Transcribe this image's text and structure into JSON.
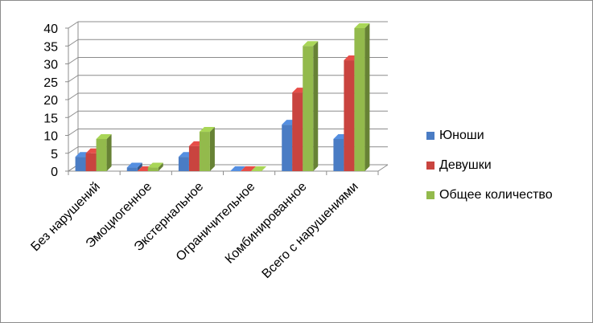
{
  "chart_data": {
    "type": "bar",
    "title": "",
    "xlabel": "",
    "ylabel": "",
    "ylim": [
      0,
      40
    ],
    "yticks": [
      0,
      5,
      10,
      15,
      20,
      25,
      30,
      35,
      40
    ],
    "grid": true,
    "legend_position": "right",
    "categories": [
      "Без нарушений",
      "Эмоциогенное",
      "Экстернальное",
      "Ограничительное",
      "Комбинированное",
      "Всего с нарушениями"
    ],
    "series": [
      {
        "name": "Юноши",
        "color": "#4a7cc4",
        "values": [
          4,
          1,
          4,
          0,
          13,
          9
        ]
      },
      {
        "name": "Девушки",
        "color": "#c9443f",
        "values": [
          5,
          0,
          7,
          0,
          22,
          31
        ]
      },
      {
        "name": "Общее количество",
        "color": "#93ba4c",
        "values": [
          9,
          1,
          11,
          0,
          35,
          40
        ]
      }
    ]
  }
}
